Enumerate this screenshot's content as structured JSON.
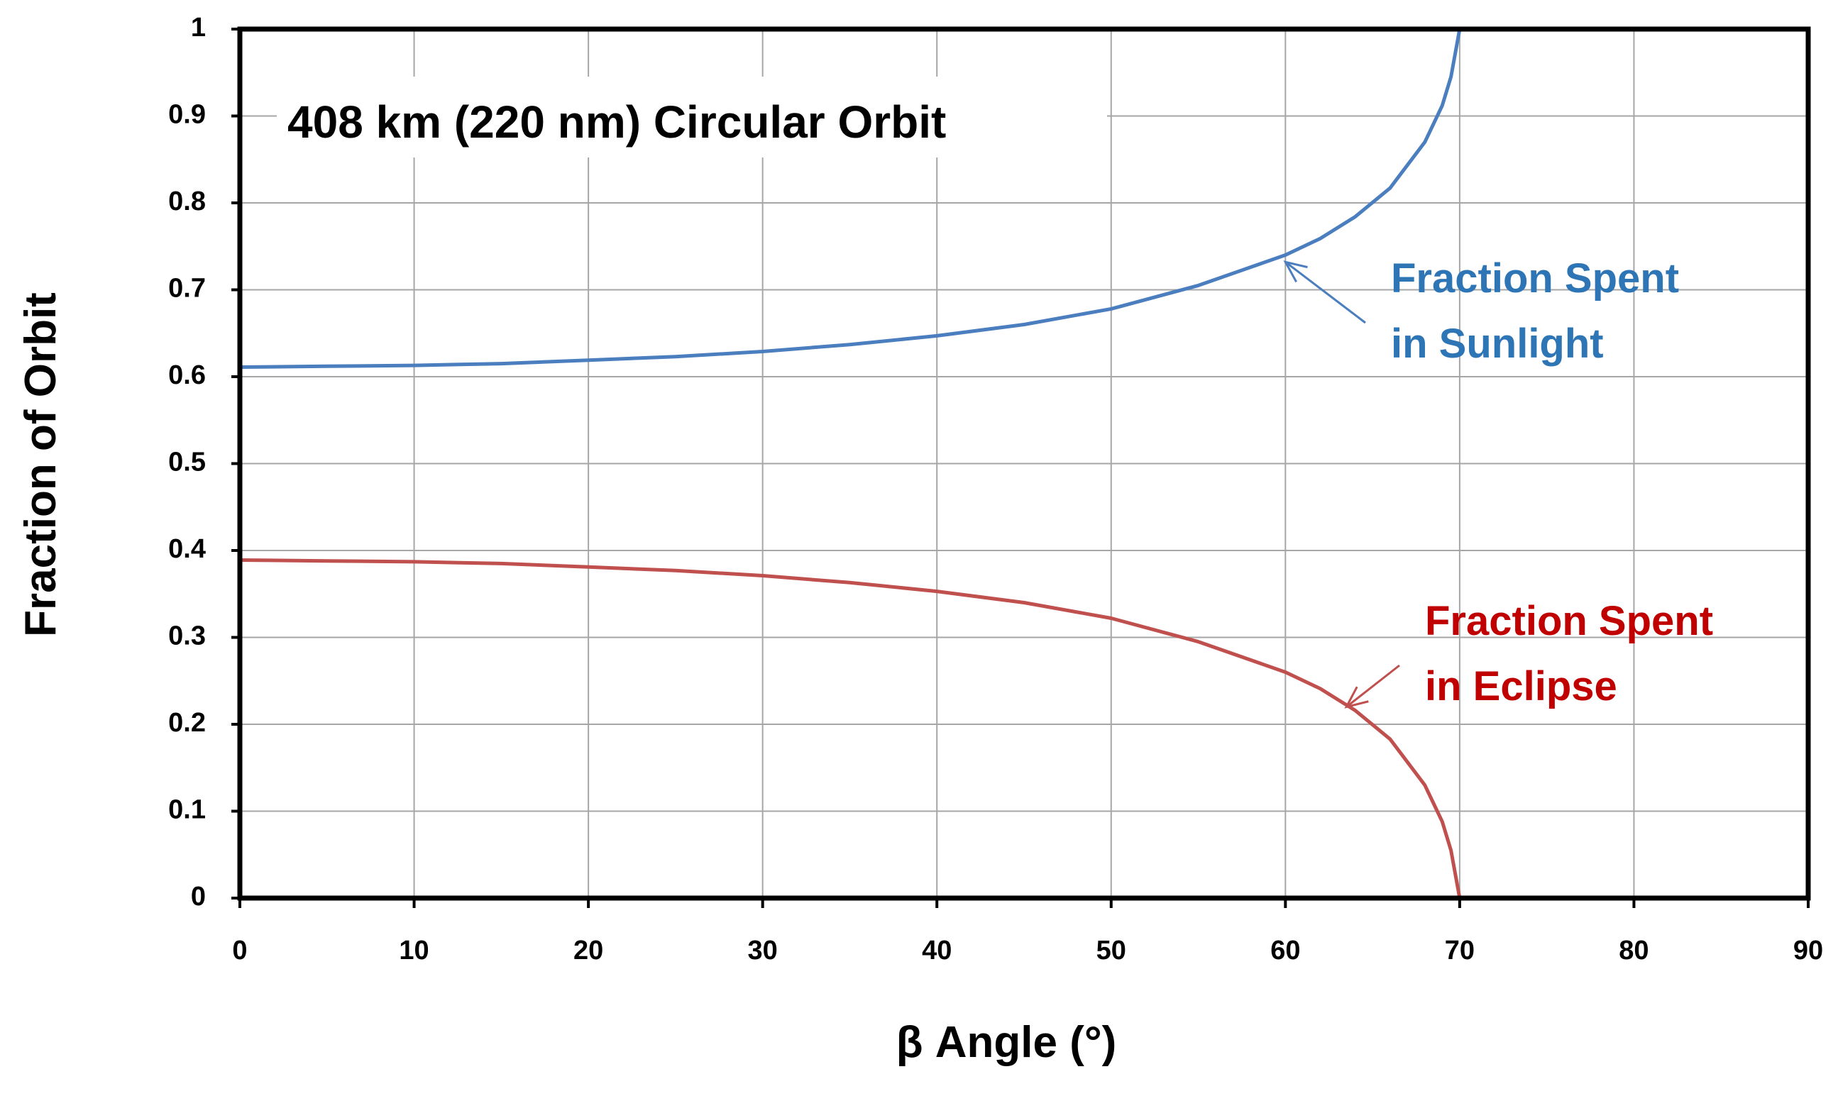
{
  "chart_data": {
    "type": "line",
    "title": "408 km (220 nm) Circular Orbit",
    "xlabel": "β Angle (°)",
    "ylabel": "Fraction of Orbit",
    "xlim": [
      0,
      90
    ],
    "ylim": [
      0,
      1
    ],
    "xticks": [
      "0",
      "10",
      "20",
      "30",
      "40",
      "50",
      "60",
      "70",
      "80",
      "90"
    ],
    "yticks": [
      "0",
      "0.1",
      "0.2",
      "0.3",
      "0.4",
      "0.5",
      "0.6",
      "0.7",
      "0.8",
      "0.9",
      "1"
    ],
    "grid": true,
    "series": [
      {
        "name": "Fraction Spent in Sunlight",
        "color": "#4a7ebf",
        "x": [
          0,
          5,
          10,
          15,
          20,
          25,
          30,
          35,
          40,
          45,
          50,
          55,
          60,
          62,
          64,
          66,
          68,
          69,
          69.5,
          70,
          70.01,
          90
        ],
        "y": [
          0.611,
          0.612,
          0.613,
          0.615,
          0.619,
          0.623,
          0.629,
          0.637,
          0.647,
          0.66,
          0.678,
          0.705,
          0.74,
          0.759,
          0.784,
          0.817,
          0.87,
          0.912,
          0.945,
          1.0,
          1.0,
          1.0
        ]
      },
      {
        "name": "Fraction Spent in Eclipse",
        "color": "#c0504d",
        "x": [
          0,
          5,
          10,
          15,
          20,
          25,
          30,
          35,
          40,
          45,
          50,
          55,
          60,
          62,
          64,
          66,
          68,
          69,
          69.5,
          70,
          70.01,
          90
        ],
        "y": [
          0.389,
          0.388,
          0.387,
          0.385,
          0.381,
          0.377,
          0.371,
          0.363,
          0.353,
          0.34,
          0.322,
          0.295,
          0.26,
          0.241,
          0.216,
          0.183,
          0.13,
          0.088,
          0.055,
          0.0,
          0.0,
          0.0
        ]
      }
    ],
    "annotations": [
      {
        "text_lines": [
          "Fraction Spent",
          "in Sunlight"
        ],
        "color": "#2e75b6",
        "arrow_to": [
          60,
          0.732
        ]
      },
      {
        "text_lines": [
          "Fraction Spent",
          "in Eclipse"
        ],
        "color": "#c00000",
        "arrow_to": [
          63.5,
          0.22
        ]
      }
    ]
  }
}
